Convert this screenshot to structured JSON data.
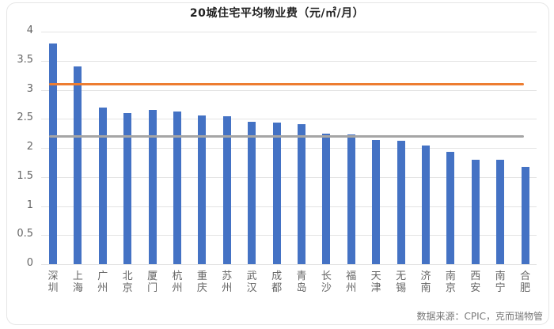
{
  "chart_data": {
    "type": "bar",
    "title": "20城住宅平均物业费（元/㎡/月）",
    "xlabel": "",
    "ylabel": "",
    "ylim": [
      0,
      4
    ],
    "yticks": [
      "0",
      "0.5",
      "1",
      "1.5",
      "2",
      "2.5",
      "3",
      "3.5",
      "4"
    ],
    "grid": true,
    "categories": [
      "深圳",
      "上海",
      "广州",
      "北京",
      "厦门",
      "杭州",
      "重庆",
      "苏州",
      "武汉",
      "成都",
      "青岛",
      "长沙",
      "福州",
      "天津",
      "无锡",
      "济南",
      "南京",
      "西安",
      "南宁",
      "合肥"
    ],
    "series": [
      {
        "name": "住宅平均物业费",
        "type": "bar",
        "color": "#4472c4",
        "values": [
          3.8,
          3.4,
          2.7,
          2.6,
          2.65,
          2.63,
          2.56,
          2.54,
          2.45,
          2.43,
          2.41,
          2.25,
          2.23,
          2.13,
          2.12,
          2.04,
          1.93,
          1.8,
          1.79,
          1.67
        ]
      },
      {
        "name": "参考线(橙)",
        "type": "hline",
        "color": "#ed7d31",
        "value": 3.1
      },
      {
        "name": "参考线(灰)",
        "type": "hline",
        "color": "#a5a5a5",
        "value": 2.2
      }
    ],
    "annotations": [
      "数据来源：CPIC，克而瑞物管"
    ]
  },
  "source_note": "数据来源：CPIC，克而瑞物管"
}
